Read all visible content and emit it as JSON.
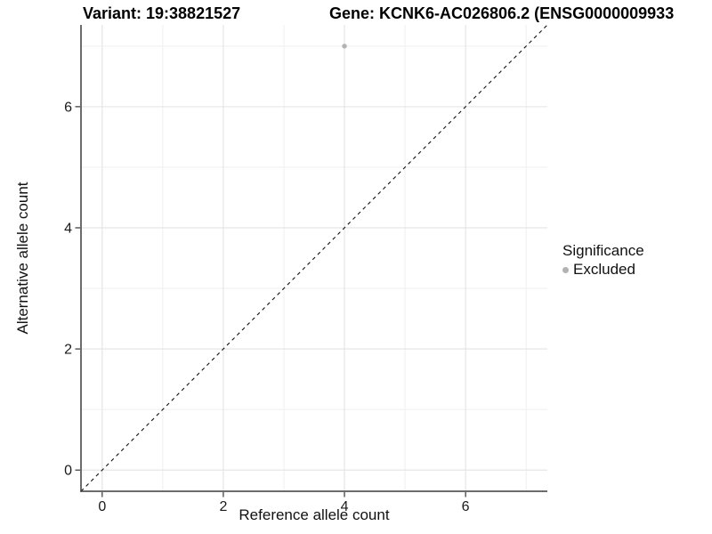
{
  "header": {
    "left_title": "Variant: 19:38821527",
    "right_title": "Gene: KCNK6-AC026806.2 (ENSG0000009933"
  },
  "axes": {
    "x_label": "Reference allele count",
    "y_label": "Alternative allele count"
  },
  "legend": {
    "title": "Significance",
    "items": [
      {
        "label": "Excluded",
        "color": "#b2b2b2"
      }
    ]
  },
  "chart_data": {
    "type": "scatter",
    "title": "Variant: 19:38821527",
    "subtitle_right": "Gene: KCNK6-AC026806.2 (ENSG0000009933",
    "xlabel": "Reference allele count",
    "ylabel": "Alternative allele count",
    "xlim": [
      -0.35,
      7.35
    ],
    "ylim": [
      -0.35,
      7.35
    ],
    "x_major_ticks": [
      0,
      2,
      4,
      6
    ],
    "y_major_ticks": [
      0,
      2,
      4,
      6
    ],
    "x_minor_gridlines": [
      1,
      3,
      5,
      7
    ],
    "y_minor_gridlines": [
      1,
      3,
      5,
      7
    ],
    "grid": true,
    "legend_position": "right",
    "series": [
      {
        "name": "Excluded",
        "color": "#b2b2b2",
        "points": [
          {
            "x": 4,
            "y": 7
          }
        ]
      }
    ],
    "reference_line": {
      "type": "identity",
      "slope": 1,
      "intercept": 0,
      "style": "dashed",
      "color": "#111111"
    },
    "colors": {
      "gridline_major": "#e3e3e3",
      "gridline_minor": "#efefef",
      "axis_line": "#3c3c3c",
      "tick_mark": "#333333",
      "tick_label": "#1a1a1a"
    }
  }
}
